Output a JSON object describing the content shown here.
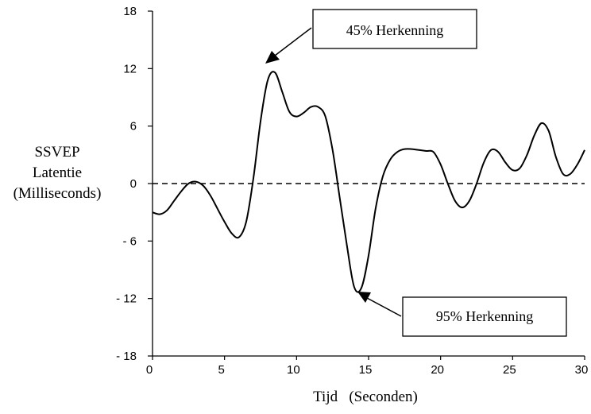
{
  "chart_data": {
    "type": "line",
    "title": "",
    "xlabel": "Tijd   (Seconden)",
    "ylabel": [
      "SSVEP",
      "Latentie",
      "(Milliseconds)"
    ],
    "xlim": [
      0,
      30
    ],
    "ylim": [
      -18,
      18
    ],
    "xticks": [
      "0",
      "5",
      "10",
      "15",
      "20",
      "25",
      "30"
    ],
    "yticks": [
      "18",
      "12",
      "6",
      "0",
      "- 6",
      "- 12",
      "- 18"
    ],
    "grid": false,
    "baseline": {
      "y": 0,
      "style": "dashed"
    },
    "series": [
      {
        "x": [
          0,
          0.5,
          1,
          1.5,
          2,
          2.5,
          3,
          3.5,
          4,
          4.5,
          5,
          5.5,
          6,
          6.5,
          7,
          7.5,
          8,
          8.5,
          9,
          9.5,
          10,
          10.5,
          11,
          11.5,
          12,
          12.5,
          13,
          13.5,
          14,
          14.5,
          15,
          15.5,
          16,
          16.5,
          17,
          17.5,
          18,
          18.5,
          19,
          19.5,
          20,
          20.5,
          21,
          21.5,
          22,
          22.5,
          23,
          23.5,
          24,
          24.5,
          25,
          25.5,
          26,
          26.5,
          27,
          27.5,
          28,
          28.5,
          29,
          29.5,
          30
        ],
        "y": [
          -3.0,
          -3.2,
          -2.8,
          -1.8,
          -0.8,
          0.0,
          0.2,
          -0.2,
          -1.2,
          -2.6,
          -4.0,
          -5.2,
          -5.6,
          -4.0,
          0.5,
          6.5,
          10.8,
          11.6,
          9.6,
          7.5,
          7.0,
          7.4,
          8.0,
          8.0,
          7.0,
          3.5,
          -1.5,
          -6.5,
          -10.8,
          -10.9,
          -7.5,
          -2.5,
          0.8,
          2.5,
          3.3,
          3.6,
          3.6,
          3.5,
          3.4,
          3.3,
          2.0,
          0.0,
          -1.8,
          -2.5,
          -1.8,
          0.0,
          2.2,
          3.5,
          3.3,
          2.2,
          1.4,
          1.6,
          3.0,
          5.0,
          6.3,
          5.5,
          2.8,
          1.0,
          1.0,
          2.0,
          3.5
        ]
      }
    ],
    "annotations": [
      {
        "text": "45% Herkenning",
        "x": 8.2,
        "y": 12.5
      },
      {
        "text": "95% Herkenning",
        "x": 14.8,
        "y": -11.5
      }
    ]
  }
}
